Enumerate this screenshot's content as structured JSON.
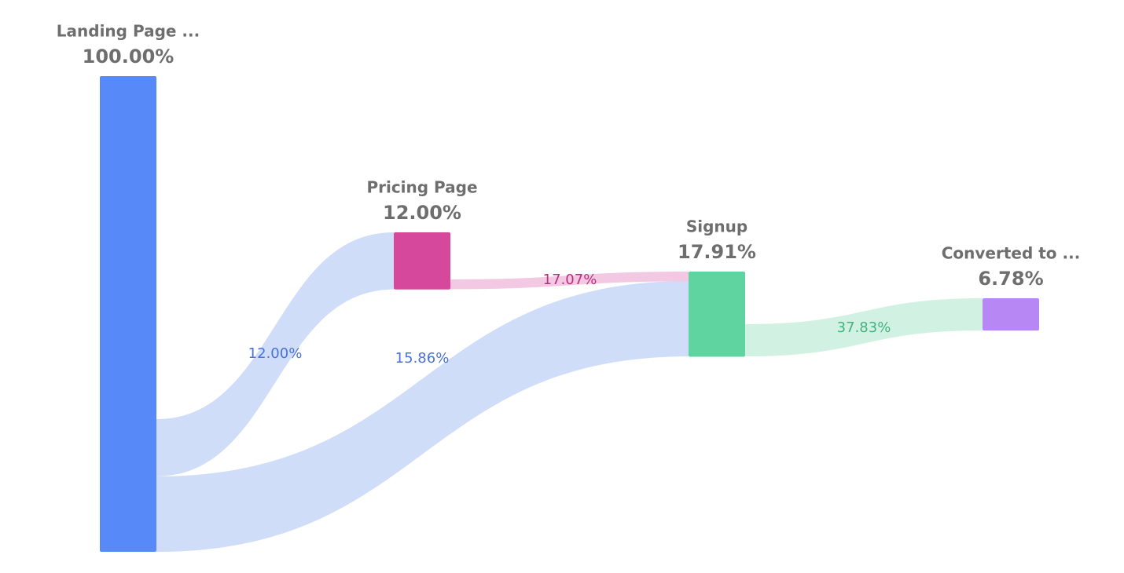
{
  "chart_data": {
    "type": "sankey",
    "nodes": {
      "names": [
        "Landing Page ...",
        "Pricing Page",
        "Signup",
        "Converted to ..."
      ],
      "values": [
        100,
        12,
        17.91,
        6.78
      ],
      "value_labels": [
        "100.00%",
        "12.00%",
        "17.91%",
        "6.78%"
      ],
      "colors": [
        "#5789f8",
        "#d5489c",
        "#5fd3a0",
        "#b788f4"
      ]
    },
    "links": {
      "sources": [
        0,
        0,
        1,
        2
      ],
      "targets": [
        1,
        2,
        2,
        3
      ],
      "values": [
        12,
        15.86,
        17.07,
        37.83
      ],
      "value_labels": [
        "12.00%",
        "15.86%",
        "17.07%",
        "37.83%"
      ],
      "colors": [
        "#ccdbf9",
        "#ccdbf9",
        "#f2c5e0",
        "#cff1e0"
      ],
      "label_colors": [
        "#4b72d6",
        "#4b72d6",
        "#b8307e",
        "#45b27e"
      ]
    }
  }
}
